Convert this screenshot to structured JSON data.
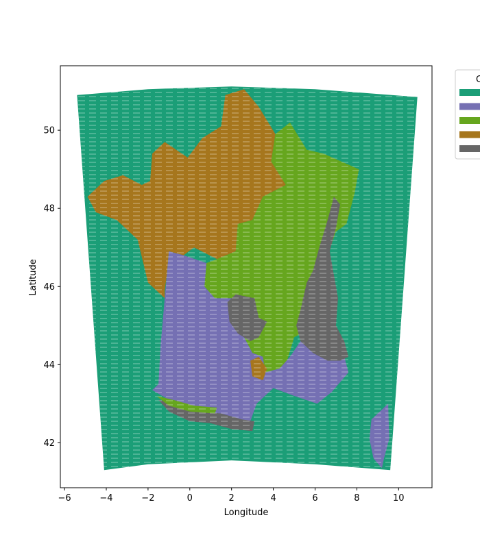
{
  "chart_data": {
    "type": "heatmap",
    "title": "",
    "xlabel": "Longitude",
    "ylabel": "Latitude",
    "xlim": [
      -6.2,
      11.6
    ],
    "ylim": [
      40.85,
      51.65
    ],
    "x_ticks": [
      -6,
      -4,
      -2,
      0,
      2,
      4,
      6,
      8,
      10
    ],
    "x_tick_labels": [
      "−6",
      "−4",
      "−2",
      "0",
      "2",
      "4",
      "6",
      "8",
      "10"
    ],
    "y_ticks": [
      42,
      44,
      46,
      48,
      50
    ],
    "y_tick_labels": [
      "42",
      "44",
      "46",
      "48",
      "50"
    ],
    "grid": false,
    "legend": {
      "position": "outside-right",
      "title": "C",
      "colors": [
        "#1b9e77",
        "#7570b3",
        "#66a61e",
        "#a6761d",
        "#666666"
      ]
    },
    "domain_outline": [
      [
        -5.4,
        50.9
      ],
      [
        -2,
        51.05
      ],
      [
        2,
        51.12
      ],
      [
        6,
        51.05
      ],
      [
        10.9,
        50.85
      ],
      [
        9.6,
        41.3
      ],
      [
        6,
        41.45
      ],
      [
        2,
        41.55
      ],
      [
        -2,
        41.45
      ],
      [
        -4.1,
        41.3
      ]
    ],
    "regions": [
      {
        "class_index": 3,
        "color": "#a6761d",
        "polygon": [
          [
            -4.9,
            48.3
          ],
          [
            -4.1,
            48.7
          ],
          [
            -3.2,
            48.85
          ],
          [
            -2.3,
            48.6
          ],
          [
            -1.9,
            48.7
          ],
          [
            -1.8,
            49.4
          ],
          [
            -1.2,
            49.7
          ],
          [
            -0.1,
            49.3
          ],
          [
            0.6,
            49.8
          ],
          [
            1.5,
            50.1
          ],
          [
            1.7,
            50.9
          ],
          [
            2.6,
            51.05
          ],
          [
            3.3,
            50.6
          ],
          [
            4.1,
            49.9
          ],
          [
            3.9,
            49.2
          ],
          [
            4.6,
            48.6
          ],
          [
            3.5,
            48.3
          ],
          [
            3,
            47.7
          ],
          [
            2.3,
            47.6
          ],
          [
            2.2,
            46.9
          ],
          [
            1.3,
            46.7
          ],
          [
            0.2,
            47
          ],
          [
            -0.3,
            46.8
          ],
          [
            -1,
            46.9
          ],
          [
            -1.1,
            46.3
          ],
          [
            -1.2,
            45.9
          ],
          [
            -1.2,
            45.7
          ],
          [
            -2,
            46.1
          ],
          [
            -2.5,
            47.2
          ],
          [
            -3.5,
            47.7
          ],
          [
            -4.5,
            47.9
          ]
        ]
      },
      {
        "class_index": 2,
        "color": "#66a61e",
        "polygon": [
          [
            4.1,
            49.9
          ],
          [
            4.8,
            50.2
          ],
          [
            5.6,
            49.5
          ],
          [
            6.4,
            49.4
          ],
          [
            8.1,
            49
          ],
          [
            7.9,
            48.4
          ],
          [
            7.5,
            47.6
          ],
          [
            7,
            47.4
          ],
          [
            6.6,
            46.8
          ],
          [
            6.4,
            46.3
          ],
          [
            6,
            45.4
          ],
          [
            5.7,
            44.9
          ],
          [
            5,
            44.7
          ],
          [
            4.6,
            44
          ],
          [
            4.3,
            43.9
          ],
          [
            3.6,
            43.8
          ],
          [
            3.5,
            44.2
          ],
          [
            3,
            44.3
          ],
          [
            2.6,
            44.7
          ],
          [
            2.1,
            45.2
          ],
          [
            2,
            45.7
          ],
          [
            1.2,
            45.7
          ],
          [
            0.7,
            46
          ],
          [
            0.8,
            46.6
          ],
          [
            1.3,
            46.7
          ],
          [
            2.2,
            46.9
          ],
          [
            2.3,
            47.6
          ],
          [
            3,
            47.7
          ],
          [
            3.5,
            48.3
          ],
          [
            4.6,
            48.6
          ],
          [
            3.9,
            49.2
          ]
        ]
      },
      {
        "class_index": 1,
        "color": "#7570b3",
        "polygon": [
          [
            -1.2,
            45.7
          ],
          [
            -1.4,
            44.5
          ],
          [
            -1.5,
            43.5
          ],
          [
            -1.8,
            43.35
          ],
          [
            -1,
            43.1
          ],
          [
            0,
            42.75
          ],
          [
            1.2,
            42.6
          ],
          [
            2,
            42.4
          ],
          [
            2.8,
            42.4
          ],
          [
            3.2,
            43
          ],
          [
            4,
            43.4
          ],
          [
            5,
            43.2
          ],
          [
            6.1,
            43
          ],
          [
            6.8,
            43.3
          ],
          [
            7.6,
            43.8
          ],
          [
            7.3,
            44.4
          ],
          [
            6.8,
            44.9
          ],
          [
            5.9,
            45
          ],
          [
            5.3,
            44.6
          ],
          [
            4.8,
            44.2
          ],
          [
            4.3,
            43.9
          ],
          [
            3.6,
            43.8
          ],
          [
            3.5,
            44.2
          ],
          [
            3,
            44.3
          ],
          [
            2.6,
            44.7
          ],
          [
            2.1,
            45.2
          ],
          [
            2,
            45.7
          ],
          [
            1.2,
            45.7
          ],
          [
            0.7,
            46
          ],
          [
            0.8,
            46.6
          ],
          [
            -0.3,
            46.8
          ],
          [
            -1,
            46.9
          ],
          [
            -1.1,
            46.3
          ]
        ]
      },
      {
        "class_index": 1,
        "color": "#7570b3",
        "polygon": [
          [
            8.6,
            42.1
          ],
          [
            8.7,
            42.6
          ],
          [
            9.3,
            42.9
          ],
          [
            9.5,
            43
          ],
          [
            9.55,
            42.1
          ],
          [
            9.3,
            41.6
          ],
          [
            9.2,
            41.35
          ],
          [
            8.8,
            41.6
          ]
        ]
      },
      {
        "class_index": 4,
        "color": "#666666",
        "polygon": [
          [
            6.9,
            48.3
          ],
          [
            6.6,
            47.7
          ],
          [
            6.2,
            47
          ],
          [
            5.9,
            46.4
          ],
          [
            5.6,
            46.1
          ],
          [
            5.3,
            45.4
          ],
          [
            5.1,
            45
          ],
          [
            5.3,
            44.6
          ],
          [
            5.9,
            44.3
          ],
          [
            6.6,
            44.1
          ],
          [
            7.2,
            44.1
          ],
          [
            7.6,
            44.2
          ],
          [
            7.4,
            44.6
          ],
          [
            7,
            45
          ],
          [
            7.1,
            45.7
          ],
          [
            6.9,
            46.3
          ],
          [
            6.7,
            46.9
          ],
          [
            7,
            47.5
          ],
          [
            7.2,
            48.1
          ]
        ]
      },
      {
        "class_index": 4,
        "color": "#666666",
        "polygon": [
          [
            1.8,
            45.6
          ],
          [
            2.2,
            45.8
          ],
          [
            3.1,
            45.7
          ],
          [
            3.3,
            45.2
          ],
          [
            3.7,
            45.1
          ],
          [
            3.3,
            44.7
          ],
          [
            2.9,
            44.6
          ],
          [
            2.3,
            44.8
          ],
          [
            1.9,
            45.1
          ]
        ]
      },
      {
        "class_index": 4,
        "color": "#666666",
        "polygon": [
          [
            -1.5,
            43.1
          ],
          [
            -0.5,
            43
          ],
          [
            0.4,
            42.8
          ],
          [
            1.5,
            42.75
          ],
          [
            2.5,
            42.6
          ],
          [
            3.1,
            42.55
          ],
          [
            3,
            42.3
          ],
          [
            2,
            42.35
          ],
          [
            1,
            42.5
          ],
          [
            0,
            42.55
          ],
          [
            -1,
            42.8
          ]
        ]
      },
      {
        "class_index": 2,
        "color": "#66a61e",
        "polygon": [
          [
            -1.6,
            43.2
          ],
          [
            -0.8,
            43.1
          ],
          [
            0.2,
            42.95
          ],
          [
            1.3,
            42.9
          ],
          [
            1.2,
            42.75
          ],
          [
            0,
            42.8
          ],
          [
            -1,
            42.95
          ]
        ]
      },
      {
        "class_index": 3,
        "color": "#a6761d",
        "polygon": [
          [
            2.9,
            44.1
          ],
          [
            3.3,
            44.2
          ],
          [
            3.7,
            43.9
          ],
          [
            3.5,
            43.6
          ],
          [
            3,
            43.7
          ]
        ]
      }
    ]
  }
}
